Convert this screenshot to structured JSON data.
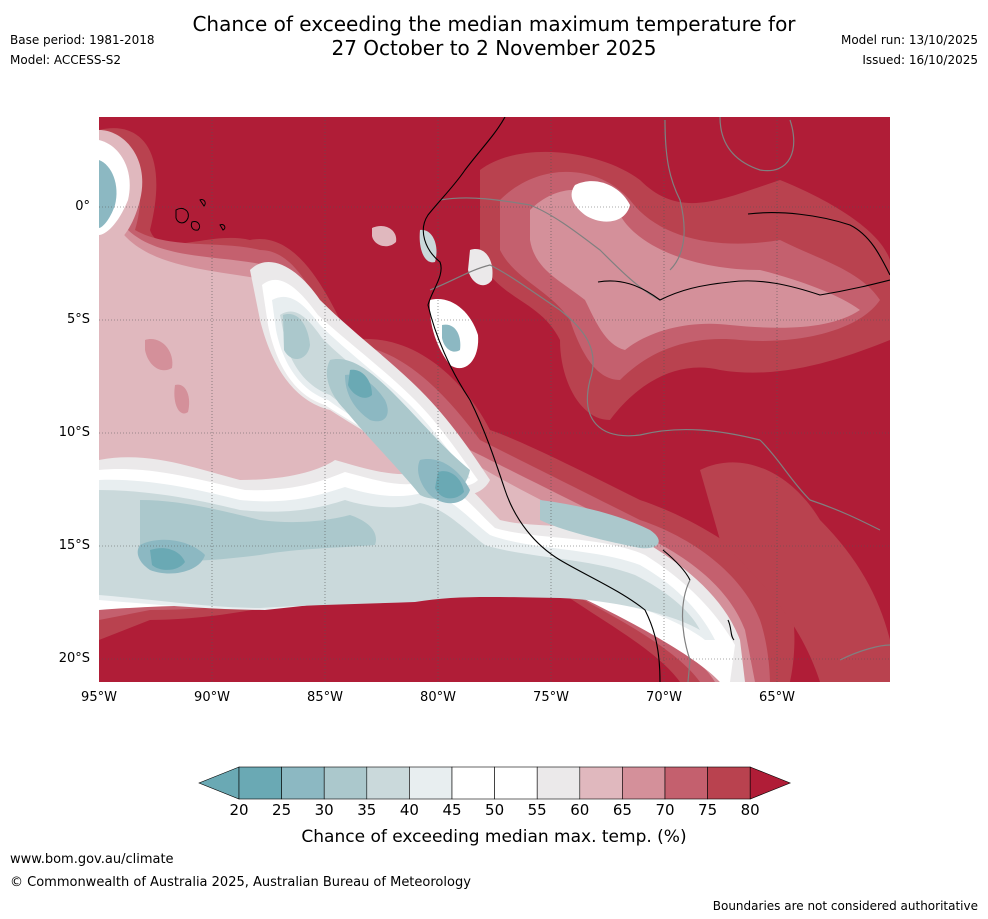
{
  "title_line1": "Chance of exceeding the median maximum temperature for",
  "title_line2": "27 October to 2 November 2025",
  "base_period": "Base period: 1981-2018",
  "model": "Model: ACCESS-S2",
  "model_run": "Model run: 13/10/2025",
  "issued": "Issued: 16/10/2025",
  "lat_labels": [
    "0°",
    "5°S",
    "10°S",
    "15°S",
    "20°S"
  ],
  "lon_labels": [
    "95°W",
    "90°W",
    "85°W",
    "80°W",
    "75°W",
    "70°W",
    "65°W"
  ],
  "colorbar": {
    "title": "Chance of exceeding median max. temp. (%)",
    "ticks": [
      "20",
      "25",
      "30",
      "35",
      "40",
      "45",
      "50",
      "55",
      "60",
      "65",
      "70",
      "75",
      "80"
    ],
    "colors": [
      "#6aa9b4",
      "#8cb8c2",
      "#abc8cc",
      "#cad9db",
      "#e8eef0",
      "#ffffff",
      "#ffffff",
      "#ebe9ea",
      "#e0b8be",
      "#d4909a",
      "#c4606e",
      "#b9424f",
      "#b01d37"
    ]
  },
  "footer_url": "www.bom.gov.au/climate",
  "copyright": "© Commonwealth of Australia 2025, Australian Bureau of Meteorology",
  "disclaimer": "Boundaries are not considered authoritative"
}
